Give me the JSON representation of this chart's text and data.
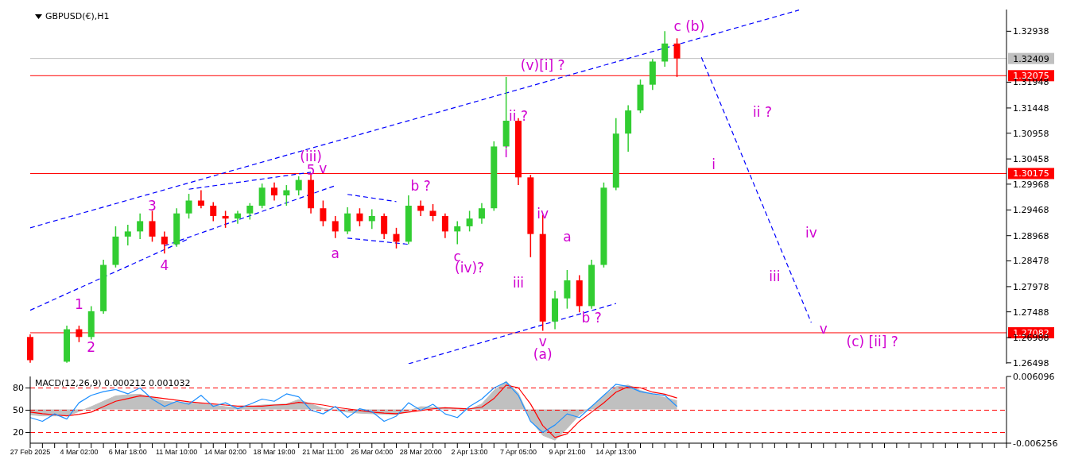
{
  "chart_data": [
    {
      "type": "candlestick",
      "title": "GBPUSD(€),H1",
      "categories": [
        null,
        null,
        null,
        null,
        null,
        null,
        null,
        null,
        null,
        null,
        null,
        null,
        null,
        null,
        null,
        null,
        null,
        null,
        null,
        null,
        null,
        null,
        null,
        null,
        null,
        null,
        null,
        null,
        null,
        null,
        null,
        null,
        null,
        null,
        null,
        null,
        null,
        null,
        null,
        null,
        null,
        null,
        null,
        null,
        null,
        null,
        null,
        null,
        null,
        null,
        null,
        null,
        null,
        null,
        null,
        null,
        null,
        null,
        null,
        null,
        null,
        null,
        null,
        null,
        null,
        null,
        null,
        null,
        null,
        null,
        null,
        null,
        null,
        null,
        null,
        null,
        null,
        null,
        null,
        null,
        null
      ],
      "ohlc": [
        [
          1.27,
          1.2705,
          1.265,
          1.2655
        ],
        null,
        null,
        [
          1.2652,
          1.2722,
          1.265,
          1.2715
        ],
        [
          1.2715,
          1.2722,
          1.269,
          1.27
        ],
        [
          1.27,
          1.276,
          1.2695,
          1.275
        ],
        [
          1.275,
          1.285,
          1.2745,
          1.284
        ],
        [
          1.284,
          1.2915,
          1.2835,
          1.2895
        ],
        [
          1.2895,
          1.2918,
          1.2878,
          1.2905
        ],
        [
          1.2905,
          1.294,
          1.289,
          1.2925
        ],
        [
          1.2925,
          1.2945,
          1.2885,
          1.2895
        ],
        [
          1.2895,
          1.2905,
          1.2862,
          1.288
        ],
        [
          1.288,
          1.295,
          1.2875,
          1.294
        ],
        [
          1.294,
          1.2978,
          1.293,
          1.2965
        ],
        [
          1.2965,
          1.2985,
          1.295,
          1.2955
        ],
        [
          1.2955,
          1.2962,
          1.2925,
          1.2935
        ],
        [
          1.2935,
          1.2945,
          1.2912,
          1.293
        ],
        [
          1.293,
          1.2945,
          1.292,
          1.294
        ],
        [
          1.294,
          1.296,
          1.2928,
          1.2955
        ],
        [
          1.2955,
          1.2998,
          1.295,
          1.299
        ],
        [
          1.299,
          1.3,
          1.2965,
          1.2975
        ],
        [
          1.2975,
          1.2995,
          1.2955,
          1.2985
        ],
        [
          1.2985,
          1.3012,
          1.2975,
          1.3005
        ],
        [
          1.3005,
          1.3016,
          1.294,
          1.295
        ],
        [
          1.295,
          1.2965,
          1.2915,
          1.2925
        ],
        [
          1.2925,
          1.2935,
          1.2892,
          1.2905
        ],
        [
          1.2905,
          1.2952,
          1.29,
          1.294
        ],
        [
          1.294,
          1.295,
          1.2915,
          1.2925
        ],
        [
          1.2925,
          1.2948,
          1.291,
          1.2935
        ],
        [
          1.2935,
          1.294,
          1.289,
          1.29
        ],
        [
          1.29,
          1.2912,
          1.2872,
          1.2885
        ],
        [
          1.2885,
          1.2975,
          1.288,
          1.2955
        ],
        [
          1.2955,
          1.2965,
          1.2935,
          1.2945
        ],
        [
          1.2945,
          1.2958,
          1.2925,
          1.2935
        ],
        [
          1.2935,
          1.294,
          1.2892,
          1.2905
        ],
        [
          1.2905,
          1.2925,
          1.288,
          1.2915
        ],
        [
          1.2915,
          1.2945,
          1.2905,
          1.293
        ],
        [
          1.293,
          1.296,
          1.292,
          1.295
        ],
        [
          1.295,
          1.308,
          1.2945,
          1.307
        ],
        [
          1.307,
          1.3205,
          1.3065,
          1.312
        ],
        [
          1.312,
          1.3125,
          1.2995,
          1.301
        ],
        [
          1.301,
          1.3015,
          1.2855,
          1.29
        ],
        [
          1.29,
          1.2937,
          1.2712,
          1.273
        ],
        [
          1.273,
          1.279,
          1.2715,
          1.2775
        ],
        [
          1.2775,
          1.283,
          1.2755,
          1.281
        ],
        [
          1.281,
          1.282,
          1.2748,
          1.276
        ],
        [
          1.276,
          1.285,
          1.2755,
          1.284
        ],
        [
          1.284,
          1.3,
          1.2835,
          1.299
        ],
        [
          1.299,
          1.3125,
          1.2985,
          1.3095
        ],
        [
          1.3095,
          1.315,
          1.306,
          1.314
        ],
        [
          1.314,
          1.32,
          1.3135,
          1.319
        ],
        [
          1.319,
          1.324,
          1.318,
          1.3235
        ],
        [
          1.3235,
          1.3294,
          1.3225,
          1.327
        ],
        [
          1.327,
          1.328,
          1.3205,
          1.32409
        ],
        null,
        null,
        null,
        null,
        null,
        null,
        null,
        null,
        null,
        null,
        null,
        null,
        null,
        null,
        null,
        null,
        null,
        null,
        null,
        null,
        null,
        null,
        null,
        null,
        null,
        null,
        null
      ],
      "series": [
        {
          "type": "line",
          "color": "#0000ff",
          "values": [
            1.2912,
            null,
            null,
            null,
            null,
            null,
            null,
            null,
            null,
            null,
            null,
            null,
            null,
            null,
            null,
            null,
            null,
            null,
            null,
            null,
            null,
            null,
            null,
            null,
            null,
            null,
            null,
            null,
            null,
            null,
            null,
            null,
            null,
            null,
            null,
            null,
            null,
            null,
            null,
            null,
            null,
            null,
            null,
            null,
            null,
            null,
            null,
            null,
            null,
            null,
            null,
            null,
            null,
            null,
            null,
            null,
            null,
            null,
            null,
            null,
            null,
            null,
            null,
            1.3335,
            null,
            null,
            null,
            null,
            null,
            null,
            null,
            null,
            null,
            null,
            null,
            null,
            null,
            null,
            null,
            null,
            null
          ]
        },
        {
          "type": "line",
          "color": "#0000ff",
          "values": [
            1.2752,
            null,
            null,
            null,
            null,
            null,
            null,
            null,
            null,
            null,
            null,
            null,
            null,
            1.2891,
            null,
            null,
            null,
            null,
            null,
            null,
            null,
            null,
            null,
            null,
            null,
            null,
            null,
            null,
            null,
            null,
            null,
            null,
            null,
            null,
            null,
            null,
            null,
            null,
            null,
            null,
            null,
            null,
            null,
            null,
            null,
            null,
            null,
            null,
            null,
            null,
            null,
            null,
            null,
            null,
            null,
            null,
            null,
            null,
            null,
            null,
            null,
            null,
            null,
            null,
            null,
            null,
            null,
            null,
            null,
            null,
            null,
            null,
            null,
            null,
            null,
            null,
            null,
            null,
            null,
            null,
            null
          ]
        },
        {
          "type": "line",
          "color": "#0000ff",
          "values": [
            null,
            null,
            null,
            null,
            null,
            null,
            null,
            null,
            null,
            null,
            null,
            1.2877,
            null,
            null,
            null,
            null,
            null,
            null,
            null,
            null,
            null,
            null,
            null,
            null,
            null,
            1.2994,
            null,
            null,
            null,
            null,
            null,
            null,
            null,
            null,
            null,
            null,
            null,
            null,
            null,
            null,
            null,
            null,
            null,
            null,
            null,
            null,
            null,
            null,
            null,
            null,
            null,
            null,
            null,
            null,
            null,
            null,
            null,
            null,
            null,
            null,
            null,
            null,
            null,
            null,
            null,
            null,
            null,
            null,
            null,
            null,
            null,
            null,
            null,
            null,
            null,
            null,
            null,
            null,
            null,
            null,
            null
          ]
        },
        {
          "type": "line",
          "color": "#0000ff",
          "values": [
            null,
            null,
            null,
            null,
            null,
            null,
            null,
            null,
            null,
            null,
            null,
            null,
            null,
            1.2987,
            null,
            null,
            null,
            null,
            null,
            null,
            null,
            null,
            null,
            1.302,
            null,
            null,
            null,
            null,
            null,
            null,
            null,
            null,
            null,
            null,
            null,
            null,
            null,
            null,
            null,
            null,
            null,
            null,
            null,
            null,
            null,
            null,
            null,
            null,
            null,
            null,
            null,
            null,
            null,
            null,
            null,
            null,
            null,
            null,
            null,
            null,
            null,
            null,
            null,
            null,
            null,
            null,
            null,
            null,
            null,
            null,
            null,
            null,
            null,
            null,
            null,
            null,
            null,
            null,
            null,
            null,
            null
          ]
        },
        {
          "type": "line",
          "color": "#0000ff",
          "values": [
            null,
            null,
            null,
            null,
            null,
            null,
            null,
            null,
            null,
            null,
            null,
            null,
            null,
            null,
            null,
            null,
            null,
            null,
            null,
            null,
            null,
            null,
            null,
            null,
            null,
            null,
            1.2977,
            null,
            null,
            null,
            1.2963,
            null,
            null,
            null,
            null,
            null,
            null,
            null,
            null,
            null,
            null,
            null,
            null,
            null,
            null,
            null,
            null,
            null,
            null,
            null,
            null,
            null,
            null,
            null,
            null,
            null,
            null,
            null,
            null,
            null,
            null,
            null,
            null,
            null,
            null,
            null,
            null,
            null,
            null,
            null,
            null,
            null,
            null,
            null,
            null,
            null,
            null,
            null,
            null,
            null,
            null
          ]
        },
        {
          "type": "line",
          "color": "#0000ff",
          "values": [
            null,
            null,
            null,
            null,
            null,
            null,
            null,
            null,
            null,
            null,
            null,
            null,
            null,
            null,
            null,
            null,
            null,
            null,
            null,
            null,
            null,
            null,
            null,
            null,
            null,
            null,
            1.2892,
            null,
            null,
            null,
            null,
            1.288,
            null,
            null,
            null,
            null,
            null,
            null,
            null,
            null,
            null,
            null,
            null,
            null,
            null,
            null,
            null,
            null,
            null,
            null,
            null,
            null,
            null,
            null,
            null,
            null,
            null,
            null,
            null,
            null,
            null,
            null,
            null,
            null,
            null,
            null,
            null,
            null,
            null,
            null,
            null,
            null,
            null,
            null,
            null,
            null,
            null,
            null,
            null,
            null,
            null
          ]
        },
        {
          "type": "line",
          "color": "#0000ff",
          "values": [
            null,
            null,
            null,
            null,
            null,
            null,
            null,
            null,
            null,
            null,
            null,
            null,
            null,
            null,
            null,
            null,
            null,
            null,
            null,
            null,
            null,
            null,
            null,
            null,
            null,
            null,
            null,
            null,
            null,
            null,
            null,
            1.2648,
            null,
            null,
            null,
            null,
            null,
            null,
            null,
            null,
            null,
            null,
            null,
            null,
            null,
            null,
            null,
            null,
            1.2765,
            null,
            null,
            null,
            null,
            null,
            null,
            null,
            null,
            null,
            null,
            null,
            null,
            null,
            null,
            null,
            null,
            null,
            null,
            null,
            null,
            null,
            null,
            null,
            null,
            null,
            null,
            null,
            null,
            null,
            null,
            null,
            null
          ]
        },
        {
          "type": "line",
          "color": "#0000ff",
          "values": [
            null,
            null,
            null,
            null,
            null,
            null,
            null,
            null,
            null,
            null,
            null,
            null,
            null,
            null,
            null,
            null,
            null,
            null,
            null,
            null,
            null,
            null,
            null,
            null,
            null,
            null,
            null,
            null,
            null,
            null,
            null,
            null,
            null,
            null,
            null,
            null,
            null,
            null,
            null,
            null,
            null,
            null,
            null,
            null,
            null,
            null,
            null,
            null,
            null,
            null,
            null,
            null,
            null,
            null,
            null,
            1.3243,
            null,
            null,
            null,
            null,
            null,
            null,
            null,
            null,
            1.2728,
            null,
            null,
            null,
            null,
            null,
            null,
            null,
            null,
            null,
            null,
            null,
            null,
            null,
            null,
            null,
            null
          ]
        }
      ],
      "line_style": "dashed",
      "marker": "none",
      "ylim": [
        1.2648,
        1.3336
      ],
      "yticks": [
        1.26498,
        1.26988,
        1.27488,
        1.27978,
        1.28478,
        1.28968,
        1.29468,
        1.29968,
        1.30458,
        1.30958,
        1.31448,
        1.31948,
        1.32938
      ],
      "tick_labels": "y",
      "grid": false,
      "legend": false,
      "ref_lines": [
        {
          "axis": "y",
          "value": 1.32409,
          "label": "1.32409",
          "color": "#c0c0c0"
        },
        {
          "axis": "y",
          "value": 1.32075,
          "label": "1.32075",
          "color": "#ff0000"
        },
        {
          "axis": "y",
          "value": 1.30175,
          "label": "1.30175",
          "color": "#ff0000"
        },
        {
          "axis": "y",
          "value": 1.27082,
          "label": "1.27082",
          "color": "#ff0000"
        }
      ],
      "annotations": [
        "1",
        "2",
        "3",
        "4",
        "5",
        "v",
        "(iii)",
        "a",
        "b ?",
        "c",
        "(iv)?",
        "(v)[i] ?",
        "ii ?",
        "i",
        "iv",
        "iii",
        "v",
        "(a)",
        "a",
        "b ?",
        "c (b)",
        "ii ?",
        "i",
        "iv",
        "iii",
        "v",
        "(c) [ii] ?"
      ]
    },
    {
      "type": "line",
      "title": "MACD(12,26,9) 0.000212 0.001032",
      "categories": [
        "27 Feb 2025",
        null,
        null,
        null,
        "4 Mar 02:00",
        null,
        null,
        null,
        "6 Mar 18:00",
        null,
        null,
        null,
        "11 Mar 10:00",
        null,
        null,
        null,
        "14 Mar 02:00",
        null,
        null,
        null,
        "18 Mar 19:00",
        null,
        null,
        null,
        "21 Mar 11:00",
        null,
        null,
        null,
        "26 Mar 04:00",
        null,
        null,
        null,
        "28 Mar 20:00",
        null,
        null,
        null,
        "2 Apr 13:00",
        null,
        null,
        null,
        "7 Apr 05:00",
        null,
        null,
        null,
        "9 Apr 21:00",
        null,
        null,
        null,
        "14 Apr 13:00",
        null,
        null,
        null,
        null,
        null,
        null,
        null,
        null,
        null,
        null,
        null,
        null,
        null,
        null,
        null,
        null,
        null,
        null,
        null,
        null,
        null,
        null,
        null,
        null,
        null,
        null,
        null,
        null,
        null,
        null,
        null,
        null
      ],
      "series": [
        {
          "type": "area",
          "color": "#c0c0c0",
          "axis": "y2",
          "values": [
            -0.001,
            -0.0012,
            -0.0012,
            -0.0012,
            -0.0004,
            0.0005,
            0.0015,
            0.0025,
            0.0027,
            0.0028,
            0.0022,
            0.0015,
            0.0013,
            0.0012,
            0.001,
            0.0008,
            0.0005,
            0.0003,
            0.0005,
            0.0008,
            0.0009,
            0.001,
            0.0018,
            0.001,
            0.0002,
            -0.0002,
            -0.0005,
            -0.0007,
            -0.0008,
            -0.0009,
            -0.001,
            -0.0003,
            0.0005,
            0.0004,
            0.0003,
            0.0001,
            0,
            0.001,
            0.0035,
            0.0052,
            0.003,
            -0.002,
            -0.0048,
            -0.0057,
            -0.0035,
            -0.001,
            0.0005,
            0.0025,
            0.0042,
            0.0045,
            0.0035,
            0.0028,
            0.0022,
            0.0016,
            null,
            null,
            null,
            null,
            null,
            null,
            null,
            null,
            null,
            null,
            null,
            null,
            null,
            null,
            null,
            null,
            null,
            null,
            null,
            null,
            null,
            null,
            null,
            null,
            null,
            null,
            null
          ]
        },
        {
          "type": "line",
          "color": "#ff0000",
          "axis": "y2",
          "values": [
            -0.0005,
            -0.0008,
            -0.001,
            -0.0012,
            -0.0009,
            -0.0005,
            0.0005,
            0.0015,
            0.002,
            0.0025,
            0.0023,
            0.002,
            0.0017,
            0.0014,
            0.0012,
            0.001,
            0.0008,
            0.0006,
            0.0006,
            0.0006,
            0.0008,
            0.0009,
            0.0013,
            0.0011,
            0.0008,
            0.0004,
            0.0001,
            -0.0002,
            -0.0005,
            -0.0007,
            -0.0008,
            -0.0005,
            -0.0002,
            0.0001,
            0.0003,
            0.0002,
            0.0001,
            0.0004,
            0.002,
            0.0045,
            0.004,
            0.001,
            -0.003,
            -0.0052,
            -0.0045,
            -0.0022,
            -0.0005,
            0.0012,
            0.0032,
            0.0042,
            0.004,
            0.0032,
            0.0028,
            0.0021,
            null,
            null,
            null,
            null,
            null,
            null,
            null,
            null,
            null,
            null,
            null,
            null,
            null,
            null,
            null,
            null,
            null,
            null,
            null,
            null,
            null,
            null,
            null,
            null,
            null,
            null,
            null
          ]
        },
        {
          "type": "line",
          "color": "#1e90ff",
          "values": [
            40,
            35,
            45,
            38,
            60,
            70,
            75,
            78,
            72,
            80,
            65,
            55,
            62,
            58,
            70,
            55,
            60,
            52,
            58,
            65,
            62,
            72,
            68,
            50,
            45,
            55,
            40,
            52,
            48,
            35,
            42,
            60,
            50,
            58,
            45,
            40,
            55,
            65,
            80,
            88,
            70,
            35,
            20,
            30,
            45,
            40,
            55,
            70,
            85,
            82,
            75,
            72,
            70,
            55,
            null,
            null,
            null,
            null,
            null,
            null,
            null,
            null,
            null,
            null,
            null,
            null,
            null,
            null,
            null,
            null,
            null,
            null,
            null,
            null,
            null,
            null,
            null,
            null,
            null,
            null,
            null
          ]
        }
      ],
      "ylim": [
        5.5,
        95.5
      ],
      "yticks": [
        20,
        50,
        80
      ],
      "y2lim": [
        -0.006256,
        0.006096
      ],
      "y2ticks": [
        0.006096,
        -0.006256
      ],
      "marker": "none",
      "grid": false,
      "legend": false,
      "ref_lines": [
        {
          "axis": "y",
          "value": 80,
          "color": "#ff0000",
          "line_style": "dashed"
        },
        {
          "axis": "y",
          "value": 50,
          "color": "#ff0000",
          "line_style": "dashed"
        },
        {
          "axis": "y",
          "value": 20,
          "color": "#ff0000",
          "line_style": "dashed"
        }
      ]
    }
  ]
}
